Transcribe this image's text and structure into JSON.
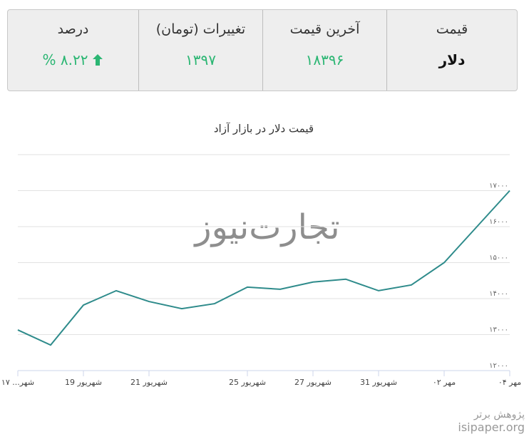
{
  "stats": {
    "headers": [
      "قیمت",
      "آخرین قیمت",
      "تغییرات (تومان)",
      "درصد"
    ],
    "values": [
      "دلار",
      "۱۸۳۹۶",
      "۱۳۹۷",
      "۸.۲۲ %"
    ]
  },
  "chart_data": {
    "type": "line",
    "title": "قیمت دلار در بازار آزاد",
    "categories": [
      "شهر... ۱۷",
      null,
      "شهریور 19",
      null,
      "شهریور 21",
      null,
      null,
      "شهریور 25",
      null,
      "شهریور 27",
      null,
      "شهریور 31",
      null,
      "مهر ۰۲",
      null,
      "مهر ۰۴"
    ],
    "values": [
      13130,
      12710,
      13820,
      14220,
      13920,
      13720,
      13860,
      14320,
      14260,
      14460,
      14540,
      14220,
      14380,
      15000,
      16000,
      17000
    ],
    "color": "#2e8b8b",
    "ylim": [
      12000,
      18000
    ],
    "yticks": [
      {
        "value": 12000,
        "label": "۱۲۰۰۰"
      },
      {
        "value": 13000,
        "label": "۱۳۰۰۰"
      },
      {
        "value": 14000,
        "label": "۱۴۰۰۰"
      },
      {
        "value": 15000,
        "label": "۱۵۰۰۰"
      },
      {
        "value": 16000,
        "label": "۱۶۰۰۰"
      },
      {
        "value": 17000,
        "label": "۱۷۰۰۰"
      }
    ],
    "grid": true
  },
  "watermark": "تجارت‌نیوز",
  "footer": {
    "brand": "پژوهش برتر",
    "site": "isipaper.org"
  }
}
